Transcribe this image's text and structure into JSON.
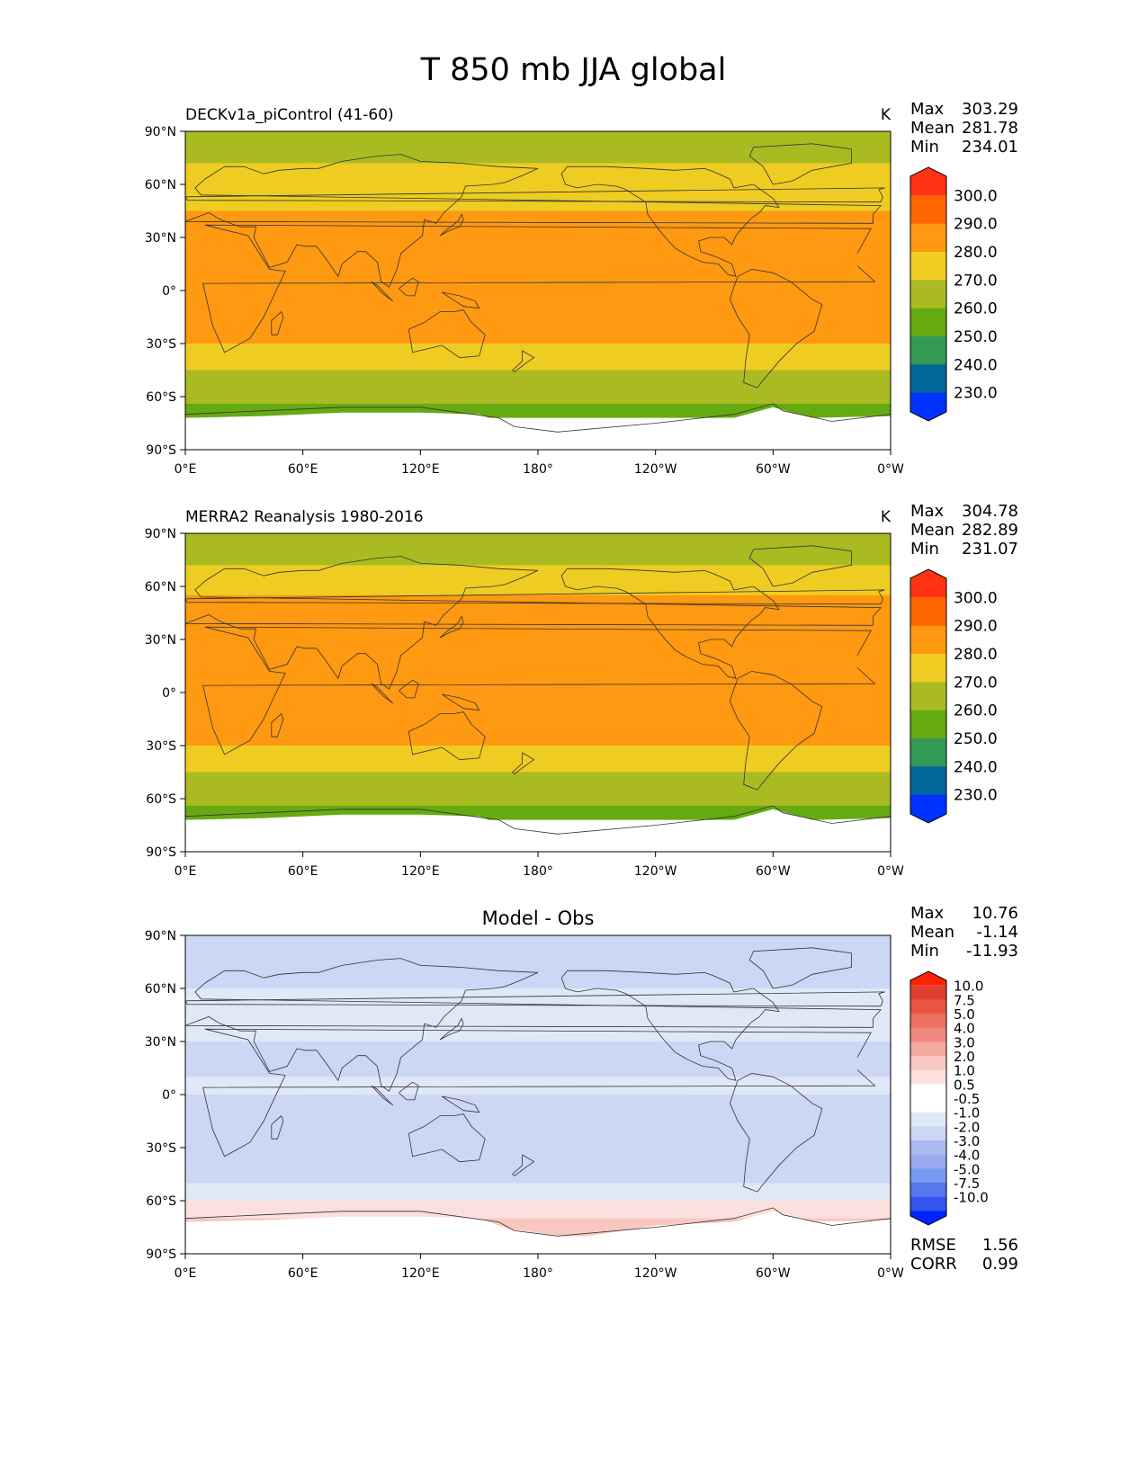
{
  "figure_title": "T 850 mb JJA global",
  "colors": {
    "abs_levels": [
      "#0033ff",
      "#006699",
      "#339955",
      "#66aa11",
      "#aabb22",
      "#eecc22",
      "#ff9911",
      "#ff6600",
      "#ff3311"
    ],
    "diff_levels": [
      "#0022ff",
      "#3355ee",
      "#5577ee",
      "#7799ee",
      "#99aaee",
      "#aabbee",
      "#ccd6f5",
      "#e0e8f8",
      "#ffffff",
      "#ffffff",
      "#fbe0dc",
      "#f8c8c0",
      "#f4aaa0",
      "#f08880",
      "#ec7060",
      "#e85545",
      "#e04030",
      "#ff2200"
    ],
    "land_outline": "#333333",
    "missing": "#ffffff"
  },
  "panels": [
    {
      "title": "DECKv1a_piControl (41-60)",
      "title_position": "left",
      "units": "K",
      "stats": [
        {
          "label": "Max",
          "value": "303.29"
        },
        {
          "label": "Mean",
          "value": "281.78"
        },
        {
          "label": "Min",
          "value": "234.01"
        }
      ],
      "colorbar_labels": [
        "300.0",
        "290.0",
        "280.0",
        "270.0",
        "260.0",
        "250.0",
        "240.0",
        "230.0"
      ],
      "extra_stats": []
    },
    {
      "title": "MERRA2 Reanalysis 1980-2016",
      "title_position": "left",
      "units": "K",
      "stats": [
        {
          "label": "Max",
          "value": "304.78"
        },
        {
          "label": "Mean",
          "value": "282.89"
        },
        {
          "label": "Min",
          "value": "231.07"
        }
      ],
      "colorbar_labels": [
        "300.0",
        "290.0",
        "280.0",
        "270.0",
        "260.0",
        "250.0",
        "240.0",
        "230.0"
      ],
      "extra_stats": []
    },
    {
      "title": "Model - Obs",
      "title_position": "center",
      "units": "",
      "stats": [
        {
          "label": "Max",
          "value": "10.76"
        },
        {
          "label": "Mean",
          "value": "-1.14"
        },
        {
          "label": "Min",
          "value": "-11.93"
        }
      ],
      "colorbar_labels": [
        "10.0",
        "7.5",
        "5.0",
        "4.0",
        "3.0",
        "2.0",
        "1.0",
        "0.5",
        "-0.5",
        "-1.0",
        "-2.0",
        "-3.0",
        "-4.0",
        "-5.0",
        "-7.5",
        "-10.0"
      ],
      "extra_stats": [
        {
          "label": "RMSE",
          "value": "1.56"
        },
        {
          "label": "CORR",
          "value": "0.99"
        }
      ]
    }
  ],
  "chart_data": [
    {
      "type": "heatmap",
      "title": "DECKv1a_piControl (41-60)",
      "units": "K",
      "x_ticks": [
        "0°E",
        "60°E",
        "120°E",
        "180°",
        "120°W",
        "60°W",
        "0°W"
      ],
      "y_ticks": [
        "90°N",
        "60°N",
        "30°N",
        "0°",
        "30°S",
        "60°S",
        "90°S"
      ],
      "xlim": [
        0,
        360
      ],
      "ylim": [
        -90,
        90
      ],
      "levels": [
        230,
        240,
        250,
        260,
        270,
        280,
        290,
        300
      ],
      "zonal_profile": {
        "lat": [
          90,
          84,
          80,
          72,
          65,
          55,
          45,
          38,
          28,
          15,
          0,
          -12,
          -20,
          -30,
          -38,
          -45,
          -55,
          -58,
          -64,
          -68,
          -72,
          -90
        ],
        "value": [
          262,
          264,
          268,
          272,
          276,
          279,
          281,
          283,
          286,
          286,
          285,
          283,
          280,
          277,
          273,
          269,
          264,
          262,
          258,
          254,
          null,
          null
        ]
      },
      "max": 303.29,
      "mean": 281.78,
      "min": 234.01
    },
    {
      "type": "heatmap",
      "title": "MERRA2 Reanalysis 1980-2016",
      "units": "K",
      "x_ticks": [
        "0°E",
        "60°E",
        "120°E",
        "180°",
        "120°W",
        "60°W",
        "0°W"
      ],
      "y_ticks": [
        "90°N",
        "60°N",
        "30°N",
        "0°",
        "30°S",
        "60°S",
        "90°S"
      ],
      "xlim": [
        0,
        360
      ],
      "ylim": [
        -90,
        90
      ],
      "levels": [
        230,
        240,
        250,
        260,
        270,
        280,
        290,
        300
      ],
      "zonal_profile": {
        "lat": [
          90,
          84,
          80,
          72,
          65,
          55,
          45,
          35,
          28,
          15,
          0,
          -12,
          -20,
          -30,
          -38,
          -45,
          -55,
          -58,
          -64,
          -68,
          -72,
          -90
        ],
        "value": [
          262,
          264,
          268,
          273,
          277,
          280,
          282,
          284,
          287,
          287,
          286,
          284,
          281,
          278,
          273,
          269,
          264,
          262,
          258,
          254,
          null,
          null
        ]
      },
      "max": 304.78,
      "mean": 282.89,
      "min": 231.07
    },
    {
      "type": "heatmap",
      "title": "Model - Obs",
      "x_ticks": [
        "0°E",
        "60°E",
        "120°E",
        "180°",
        "120°W",
        "60°W",
        "0°W"
      ],
      "y_ticks": [
        "90°N",
        "60°N",
        "30°N",
        "0°",
        "30°S",
        "60°S",
        "90°S"
      ],
      "xlim": [
        0,
        360
      ],
      "ylim": [
        -90,
        90
      ],
      "levels": [
        -10.0,
        -7.5,
        -5.0,
        -4.0,
        -3.0,
        -2.0,
        -1.0,
        -0.5,
        0.5,
        1.0,
        2.0,
        3.0,
        4.0,
        5.0,
        7.5,
        10.0
      ],
      "zonal_profile": {
        "lat": [
          90,
          80,
          70,
          60,
          50,
          40,
          30,
          20,
          10,
          0,
          -10,
          -20,
          -30,
          -40,
          -50,
          -60,
          -65,
          -70,
          -75,
          -80,
          -90
        ],
        "value": [
          -1.5,
          -1.5,
          -1.2,
          -0.8,
          -0.6,
          -0.8,
          -1.2,
          -1.2,
          -1.0,
          -1.3,
          -1.6,
          -1.8,
          -1.6,
          -1.2,
          -0.6,
          0.6,
          0.9,
          1.5,
          1.5,
          null,
          null
        ]
      },
      "max": 10.76,
      "mean": -1.14,
      "min": -11.93,
      "rmse": 1.56,
      "corr": 0.99
    }
  ]
}
